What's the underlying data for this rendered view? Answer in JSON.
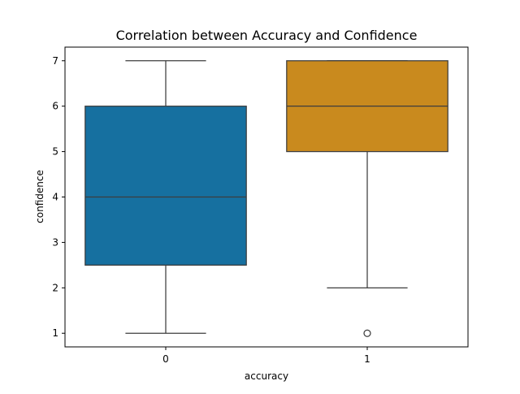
{
  "chart_data": {
    "type": "box",
    "title": "Correlation between Accuracy and Confidence",
    "xlabel": "accuracy",
    "ylabel": "confidence",
    "categories": [
      "0",
      "1"
    ],
    "ylim": [
      0.7,
      7.3
    ],
    "yticks": [
      1,
      2,
      3,
      4,
      5,
      6,
      7
    ],
    "grid": false,
    "series": [
      {
        "category": "0",
        "color": "#1670a0",
        "whisker_low": 1,
        "q1": 2.5,
        "median": 4,
        "q3": 6,
        "whisker_high": 7,
        "outliers": []
      },
      {
        "category": "1",
        "color": "#c98a1e",
        "whisker_low": 2,
        "q1": 5,
        "median": 6,
        "q3": 7,
        "whisker_high": 7,
        "outliers": [
          1
        ]
      }
    ]
  }
}
